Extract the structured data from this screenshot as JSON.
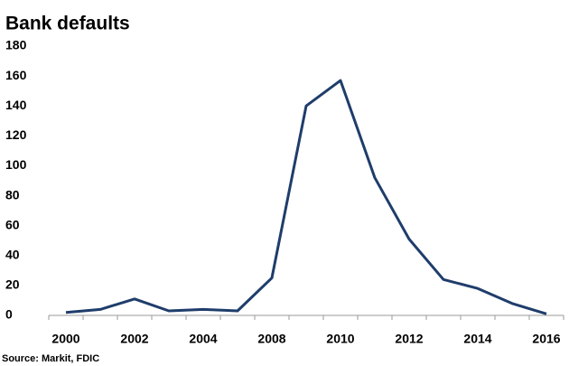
{
  "chart_data": {
    "type": "line",
    "title": "Bank defaults",
    "source": "Source: Markit, FDIC",
    "categories": [
      "2000",
      null,
      "2002",
      null,
      "2004",
      null,
      "2008",
      null,
      "2010",
      null,
      "2012",
      null,
      "2014",
      null,
      "2016"
    ],
    "series": [
      {
        "name": "Bank defaults",
        "color": "#1f3d6b",
        "values": [
          2,
          4,
          11,
          3,
          4,
          3,
          25,
          140,
          157,
          92,
          51,
          24,
          18,
          8,
          1
        ]
      }
    ],
    "ylim": [
      0,
      180
    ],
    "yticks": [
      0,
      20,
      40,
      60,
      80,
      100,
      120,
      140,
      160,
      180
    ],
    "grid": false
  }
}
